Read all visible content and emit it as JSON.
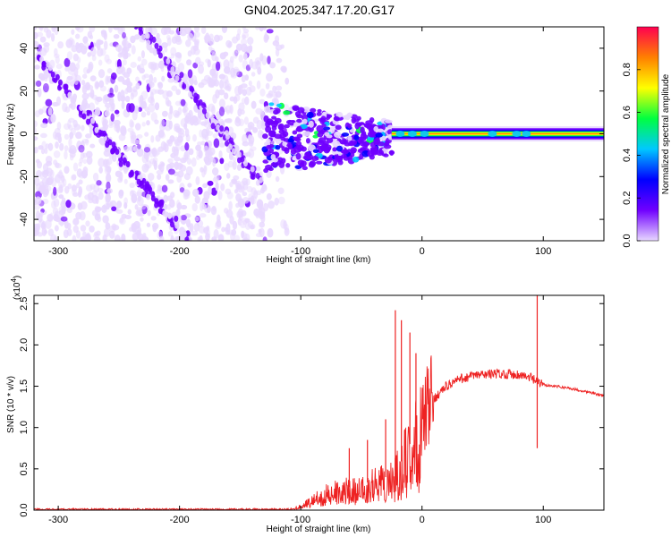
{
  "title": "GN04.2025.347.17.20.G17",
  "chart_data": [
    {
      "type": "heatmap",
      "xlabel": "Height of straight line (km)",
      "ylabel": "Frequency (Hz)",
      "xlim": [
        -320,
        150
      ],
      "ylim": [
        -50,
        50
      ],
      "xticks": [
        -300,
        -200,
        -100,
        0,
        100
      ],
      "yticks": [
        -40,
        -20,
        0,
        20,
        40
      ],
      "colorbar": {
        "label": "Normalized spectral amplitude",
        "range": [
          0.0,
          1.0
        ],
        "ticks": [
          0.0,
          0.2,
          0.4,
          0.6,
          0.8
        ],
        "colors": [
          "#e8d8ff",
          "#7000ff",
          "#0000ff",
          "#00c8ff",
          "#00ff40",
          "#ffff00",
          "#ff8000",
          "#ff0050"
        ]
      },
      "features": {
        "noise_region_x": [
          -320,
          -130
        ],
        "tone_onset_x": -25,
        "carrier_frequency": 0
      }
    },
    {
      "type": "line",
      "xlabel": "Height of straight line (km)",
      "ylabel": "SNR (10 * v/v)",
      "y_multiplier": "(x10",
      "y_exponent": "4",
      "xlim": [
        -320,
        150
      ],
      "ylim": [
        0,
        2.6
      ],
      "xticks": [
        -300,
        -200,
        -100,
        0,
        100
      ],
      "yticks": [
        0.0,
        0.5,
        1.0,
        1.5,
        2.0,
        2.5
      ],
      "color": "#ee2222",
      "series": [
        {
          "x": [
            -320,
            -300,
            -250,
            -200,
            -150,
            -110,
            -100,
            -90,
            -80,
            -70,
            -60,
            -50,
            -40,
            -30,
            -20,
            -10,
            0,
            10,
            20,
            30,
            40,
            50,
            60,
            70,
            80,
            90,
            95,
            100,
            110,
            120,
            130,
            140,
            150
          ],
          "values": [
            0.01,
            0.01,
            0.01,
            0.01,
            0.01,
            0.01,
            0.05,
            0.15,
            0.22,
            0.25,
            0.28,
            0.32,
            0.35,
            0.4,
            0.5,
            0.8,
            1.1,
            1.35,
            1.5,
            1.58,
            1.62,
            1.64,
            1.65,
            1.65,
            1.64,
            1.6,
            1.55,
            1.52,
            1.5,
            1.48,
            1.45,
            1.42,
            1.38
          ]
        }
      ],
      "spikes": [
        {
          "x": -22,
          "y": 2.42
        },
        {
          "x": -17,
          "y": 2.3
        },
        {
          "x": -10,
          "y": 2.15
        },
        {
          "x": -5,
          "y": 1.9
        },
        {
          "x": 95,
          "y": 2.6
        },
        {
          "x": 95,
          "y": 0.75
        },
        {
          "x": -30,
          "y": 1.1
        },
        {
          "x": -45,
          "y": 0.85
        },
        {
          "x": -60,
          "y": 0.75
        }
      ]
    }
  ]
}
